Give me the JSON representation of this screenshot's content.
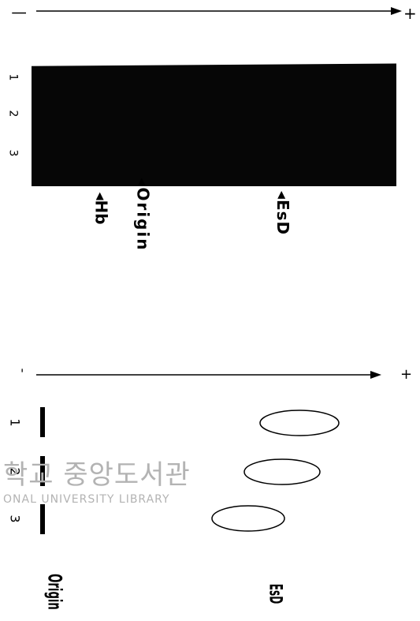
{
  "top_panel": {
    "axis": {
      "minus": "|",
      "plus": "+"
    },
    "lanes": [
      "1",
      "2",
      "3"
    ],
    "markers": [
      {
        "arrow": "◂",
        "label": "Hb"
      },
      {
        "arrow": "◂",
        "label": "Origin"
      },
      {
        "arrow": "◂",
        "label": "EsD"
      }
    ]
  },
  "bottom_panel": {
    "axis": {
      "minus": "-",
      "plus": "+"
    },
    "lanes": [
      "1",
      "2",
      "3"
    ],
    "labels": {
      "origin": "Origin",
      "band": "EsD"
    }
  },
  "watermark": {
    "korean": "학교 중앙도서관",
    "english": "ONAL UNIVERSITY LIBRARY"
  }
}
